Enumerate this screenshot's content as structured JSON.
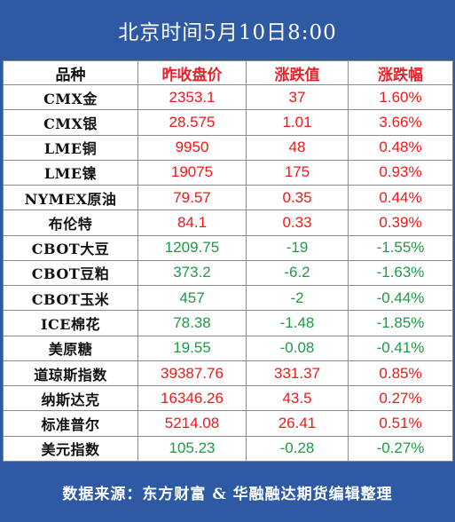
{
  "title": "北京时间5月10日8:00",
  "headers": [
    "品种",
    "昨收盘价",
    "涨跌值",
    "涨跌幅"
  ],
  "rows": [
    {
      "name": "CMX金",
      "close": "2353.1",
      "change": "37",
      "pct": "1.60%",
      "dir": "up"
    },
    {
      "name": "CMX银",
      "close": "28.575",
      "change": "1.01",
      "pct": "3.66%",
      "dir": "up"
    },
    {
      "name": "LME铜",
      "close": "9950",
      "change": "48",
      "pct": "0.48%",
      "dir": "up"
    },
    {
      "name": "LME镍",
      "close": "19075",
      "change": "175",
      "pct": "0.93%",
      "dir": "up"
    },
    {
      "name": "NYMEX原油",
      "close": "79.57",
      "change": "0.35",
      "pct": "0.44%",
      "dir": "up"
    },
    {
      "name": "布伦特",
      "close": "84.1",
      "change": "0.33",
      "pct": "0.39%",
      "dir": "up"
    },
    {
      "name": "CBOT大豆",
      "close": "1209.75",
      "change": "-19",
      "pct": "-1.55%",
      "dir": "down"
    },
    {
      "name": "CBOT豆粕",
      "close": "373.2",
      "change": "-6.2",
      "pct": "-1.63%",
      "dir": "down"
    },
    {
      "name": "CBOT玉米",
      "close": "457",
      "change": "-2",
      "pct": "-0.44%",
      "dir": "down"
    },
    {
      "name": "ICE棉花",
      "close": "78.38",
      "change": "-1.48",
      "pct": "-1.85%",
      "dir": "down"
    },
    {
      "name": "美原糖",
      "close": "19.55",
      "change": "-0.08",
      "pct": "-0.41%",
      "dir": "down"
    },
    {
      "name": "道琼斯指数",
      "close": "39387.76",
      "change": "331.37",
      "pct": "0.85%",
      "dir": "up"
    },
    {
      "name": "纳斯达克",
      "close": "16346.26",
      "change": "43.5",
      "pct": "0.27%",
      "dir": "up"
    },
    {
      "name": "标准普尔",
      "close": "5214.08",
      "change": "26.41",
      "pct": "0.51%",
      "dir": "up"
    },
    {
      "name": "美元指数",
      "close": "105.23",
      "change": "-0.28",
      "pct": "-0.27%",
      "dir": "down"
    }
  ],
  "footer": "数据来源：东方财富 & 华融融达期货编辑整理",
  "colors": {
    "background": "#2e59a3",
    "up": "#f01818",
    "down": "#1e9b45",
    "header_red": "#e8222b",
    "border": "#8b8b8b"
  }
}
